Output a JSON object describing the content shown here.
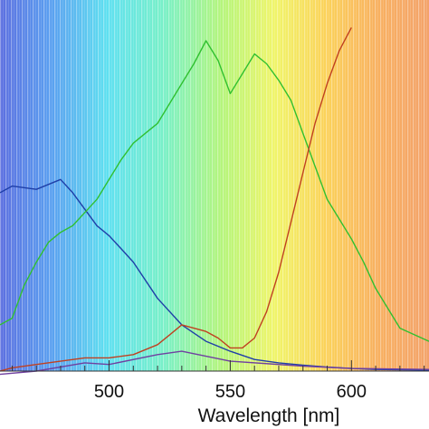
{
  "chart_data": {
    "type": "line",
    "xlabel": "Wavelength [nm]",
    "ylabel": "",
    "xlim": [
      455,
      632
    ],
    "ylim": [
      0,
      1.0
    ],
    "x_ticks": [
      {
        "value": 500,
        "label": "500"
      },
      {
        "value": 550,
        "label": "550"
      },
      {
        "value": 600,
        "label": "600"
      }
    ],
    "minor_tick_step": 10,
    "grid": false,
    "background": "visible-spectrum gradient",
    "series": [
      {
        "color": "#1f3fa8",
        "x": [
          455,
          460,
          470,
          480,
          485,
          490,
          495,
          500,
          505,
          510,
          520,
          530,
          540,
          550,
          560,
          570,
          580,
          590,
          600,
          610,
          620,
          632
        ],
        "y": [
          0.54,
          0.56,
          0.55,
          0.58,
          0.54,
          0.49,
          0.44,
          0.41,
          0.37,
          0.33,
          0.22,
          0.14,
          0.09,
          0.06,
          0.035,
          0.025,
          0.018,
          0.012,
          0.008,
          0.005,
          0.004,
          0.003
        ]
      },
      {
        "color": "#30c030",
        "x": [
          455,
          460,
          465,
          470,
          475,
          480,
          485,
          490,
          495,
          500,
          505,
          510,
          515,
          520,
          525,
          530,
          535,
          540,
          545,
          550,
          555,
          560,
          565,
          570,
          575,
          580,
          585,
          590,
          595,
          600,
          605,
          610,
          620,
          632
        ],
        "y": [
          0.14,
          0.16,
          0.26,
          0.33,
          0.39,
          0.42,
          0.44,
          0.48,
          0.52,
          0.58,
          0.64,
          0.69,
          0.72,
          0.75,
          0.81,
          0.87,
          0.93,
          1.0,
          0.94,
          0.84,
          0.9,
          0.96,
          0.93,
          0.88,
          0.82,
          0.72,
          0.62,
          0.52,
          0.46,
          0.4,
          0.33,
          0.25,
          0.13,
          0.09
        ]
      },
      {
        "color": "#c04020",
        "x": [
          455,
          460,
          470,
          480,
          490,
          500,
          510,
          520,
          525,
          530,
          535,
          540,
          545,
          550,
          555,
          560,
          565,
          570,
          575,
          580,
          585,
          590,
          595,
          600
        ],
        "y": [
          0.0,
          0.01,
          0.02,
          0.03,
          0.04,
          0.04,
          0.05,
          0.08,
          0.11,
          0.14,
          0.13,
          0.12,
          0.1,
          0.07,
          0.07,
          0.1,
          0.18,
          0.3,
          0.45,
          0.6,
          0.75,
          0.87,
          0.97,
          1.04
        ]
      },
      {
        "color": "#7040a0",
        "x": [
          455,
          470,
          490,
          500,
          520,
          530,
          550,
          580,
          600,
          632
        ],
        "y": [
          -0.01,
          0.0,
          0.025,
          0.02,
          0.05,
          0.06,
          0.03,
          0.015,
          0.008,
          0.005
        ]
      }
    ]
  }
}
